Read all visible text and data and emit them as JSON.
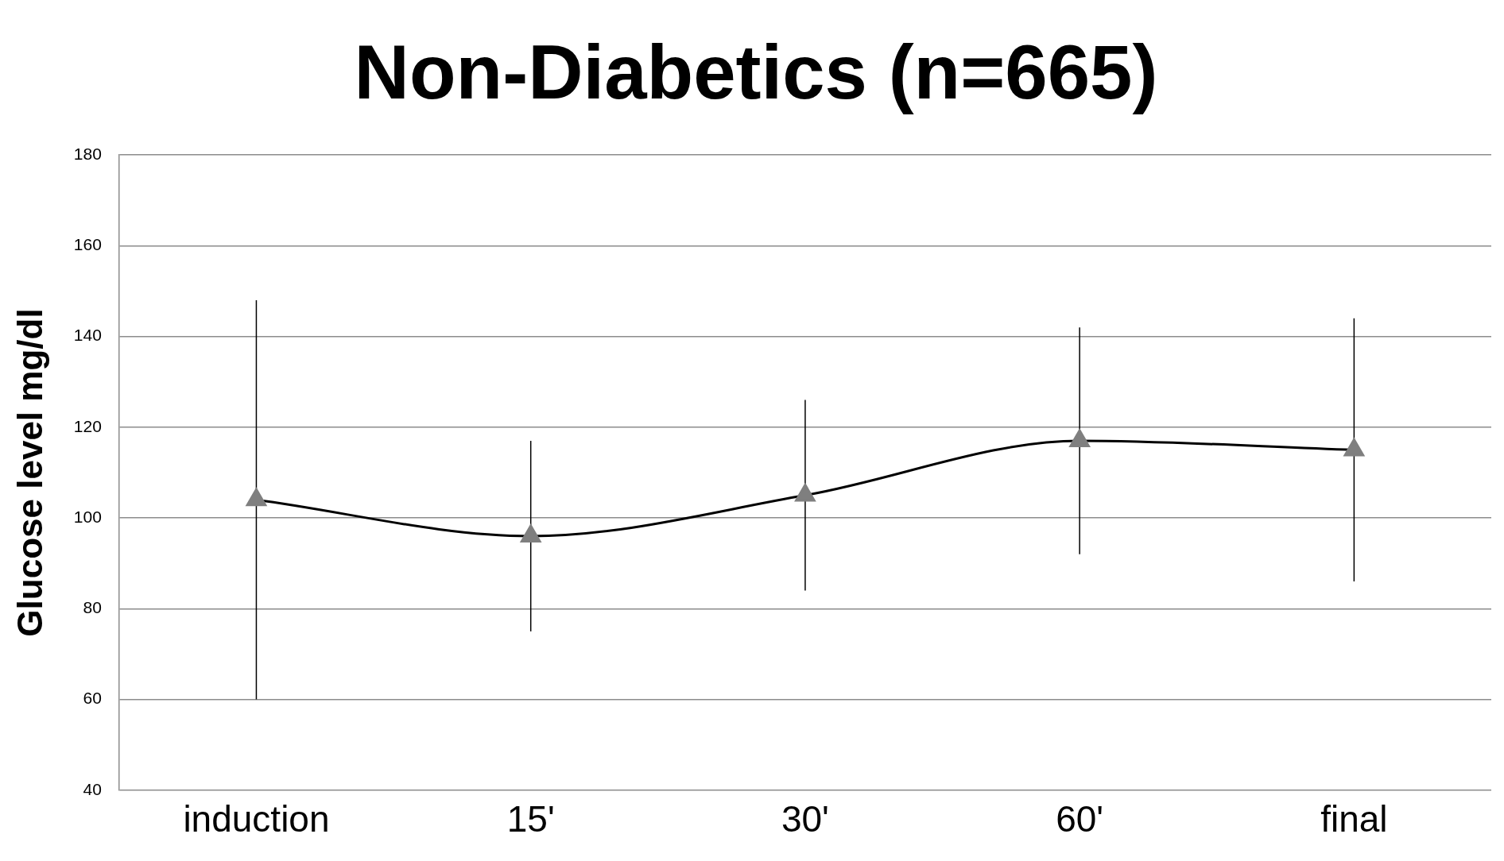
{
  "chart_data": {
    "type": "line",
    "title": "Non-Diabetics (n=665)",
    "ylabel": "Glucose level mg/dl",
    "categories": [
      "induction",
      "15'",
      "30'",
      "60'",
      "final"
    ],
    "series": [
      {
        "color": "#000000",
        "values": [
          104,
          96,
          105,
          117,
          115
        ],
        "errors": [
          44,
          21,
          21,
          25,
          29
        ]
      }
    ],
    "ylim": [
      40,
      180
    ],
    "yticks": [
      40,
      60,
      80,
      100,
      120,
      140,
      160,
      180
    ],
    "grid": "y",
    "legend": false,
    "marker": "triangle",
    "line_style": "solid"
  }
}
